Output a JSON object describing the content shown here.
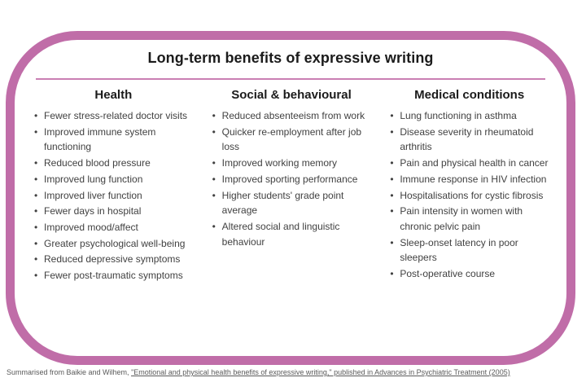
{
  "title": "Long-term benefits of expressive writing",
  "accent_color": "#c06da8",
  "columns": [
    {
      "header": "Health",
      "items": [
        "Fewer stress-related doctor visits",
        "Improved immune system functioning",
        "Reduced blood pressure",
        "Improved lung function",
        "Improved liver function",
        "Fewer days in hospital",
        "Improved mood/affect",
        "Greater psychological well-being",
        "Reduced depressive symptoms",
        "Fewer post-traumatic symptoms"
      ]
    },
    {
      "header": "Social & behavioural",
      "items": [
        "Reduced absenteeism from work",
        "Quicker re-employment after job loss",
        "Improved working memory",
        "Improved sporting performance",
        "Higher students' grade point average",
        "Altered social and linguistic behaviour"
      ]
    },
    {
      "header": "Medical conditions",
      "items": [
        "Lung functioning in asthma",
        "Disease severity in rheumatoid arthritis",
        "Pain and physical health in cancer",
        "Immune response in HIV infection",
        "Hospitalisations for cystic fibrosis",
        "Pain intensity in women with chronic pelvic pain",
        "Sleep-onset latency in poor sleepers",
        "Post-operative course"
      ]
    }
  ],
  "footer": {
    "prefix": "Summarised from Baikie and Wilhem, ",
    "link_text": "\"Emotional and physical health benefits of expressive writing,\" published in Advances in Psychiatric Treatment (2005)"
  }
}
